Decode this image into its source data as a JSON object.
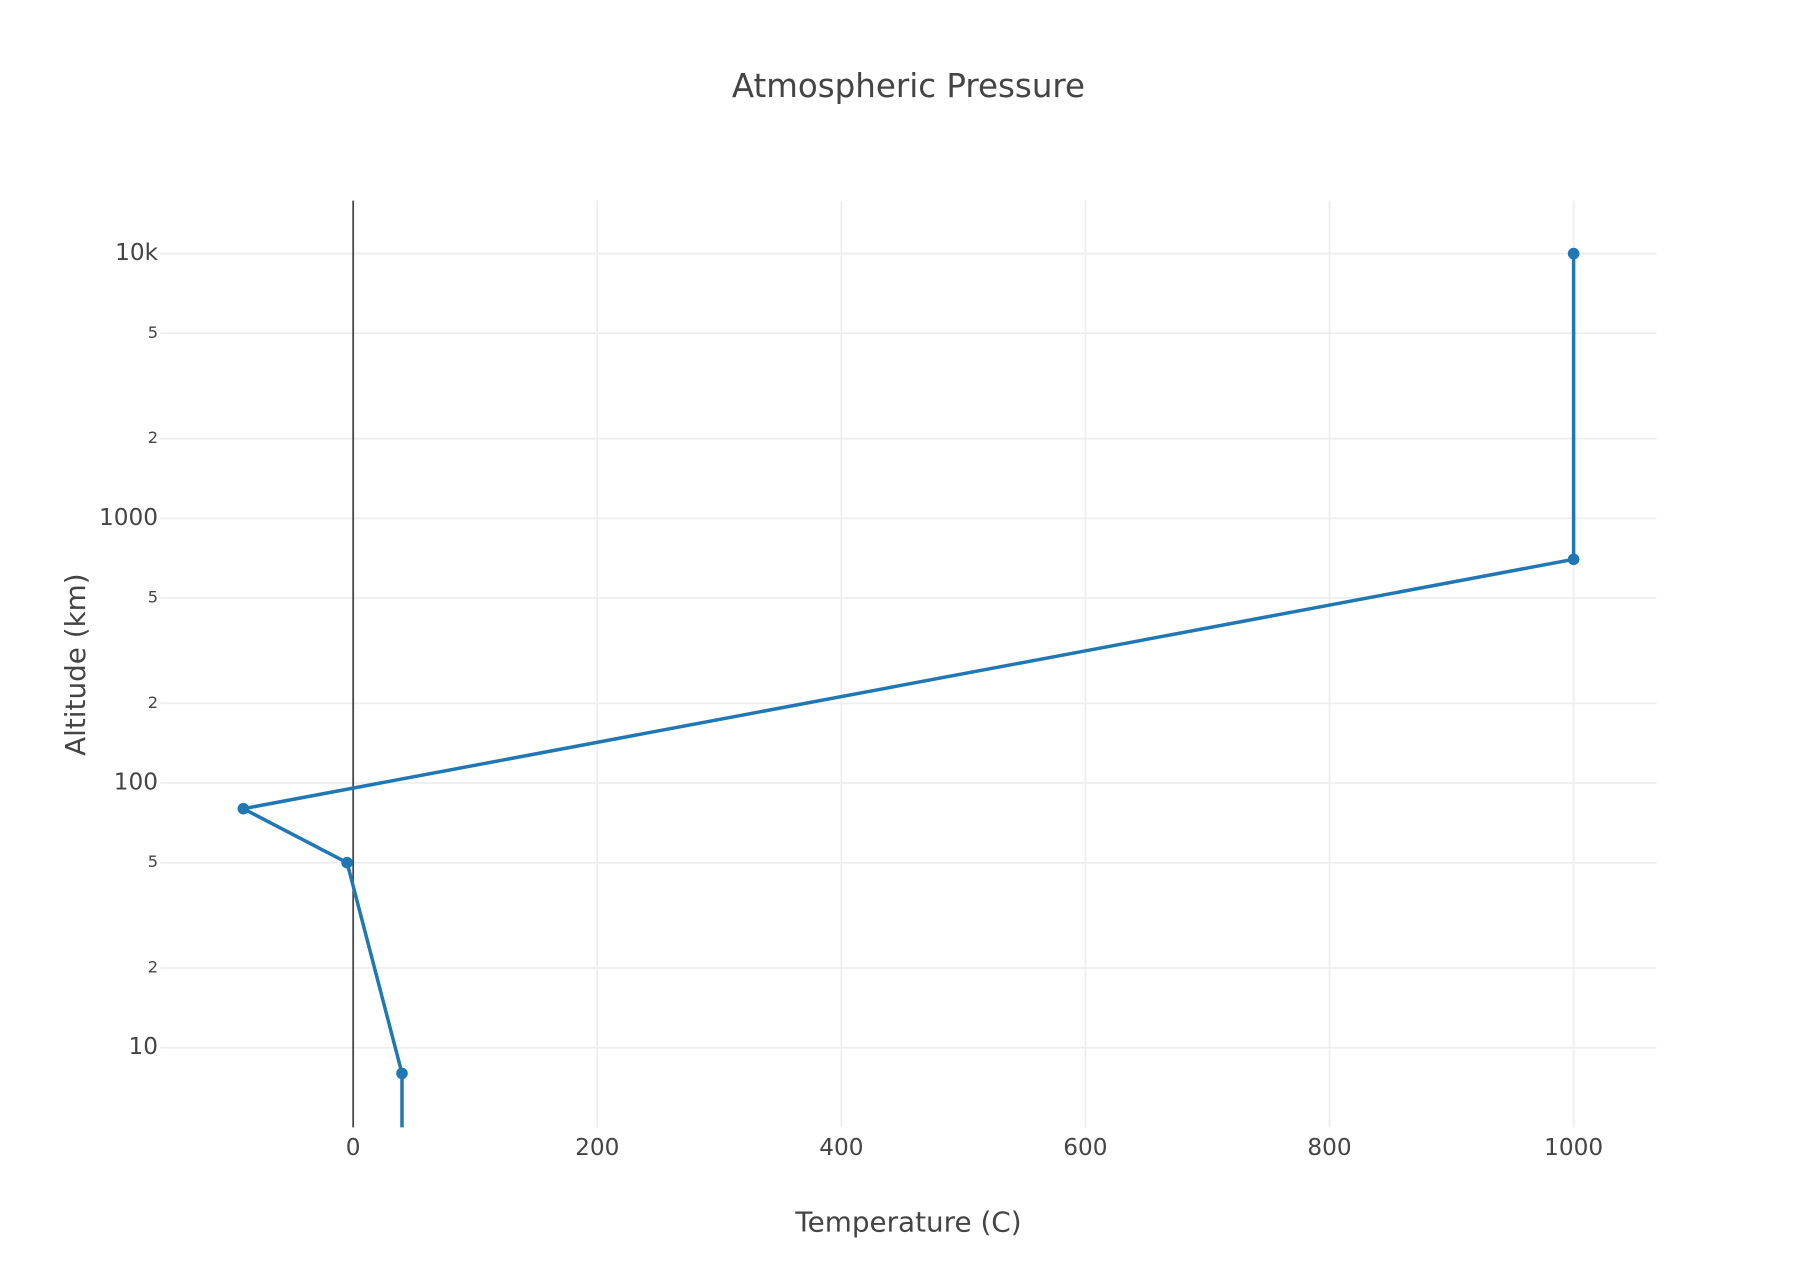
{
  "chart_data": {
    "type": "line",
    "title": "Atmospheric Pressure",
    "x_label": "Temperature (C)",
    "y_label": "Altitude (km)",
    "series": [
      {
        "name": "Altitude",
        "color": "#1f77b4",
        "x": [
          40,
          40,
          -5,
          -90,
          1000,
          1000
        ],
        "values": [
          1,
          8,
          50,
          80,
          700,
          10000
        ]
      }
    ],
    "xlim": [
      -158,
      1068
    ],
    "xticks": [
      0,
      200,
      400,
      600,
      800,
      1000
    ],
    "ylim": [
      5,
      15850
    ],
    "y_log": true,
    "yticks": [
      10,
      {
        "value": 20,
        "label": "2"
      },
      {
        "value": 50,
        "label": "5"
      },
      100,
      {
        "value": 200,
        "label": "2"
      },
      {
        "value": 500,
        "label": "5"
      },
      1000,
      {
        "value": 2000,
        "label": "2"
      },
      {
        "value": 5000,
        "label": "5"
      },
      {
        "value": 10000,
        "label": "10k"
      }
    ],
    "grid": true,
    "zero_line": true
  }
}
